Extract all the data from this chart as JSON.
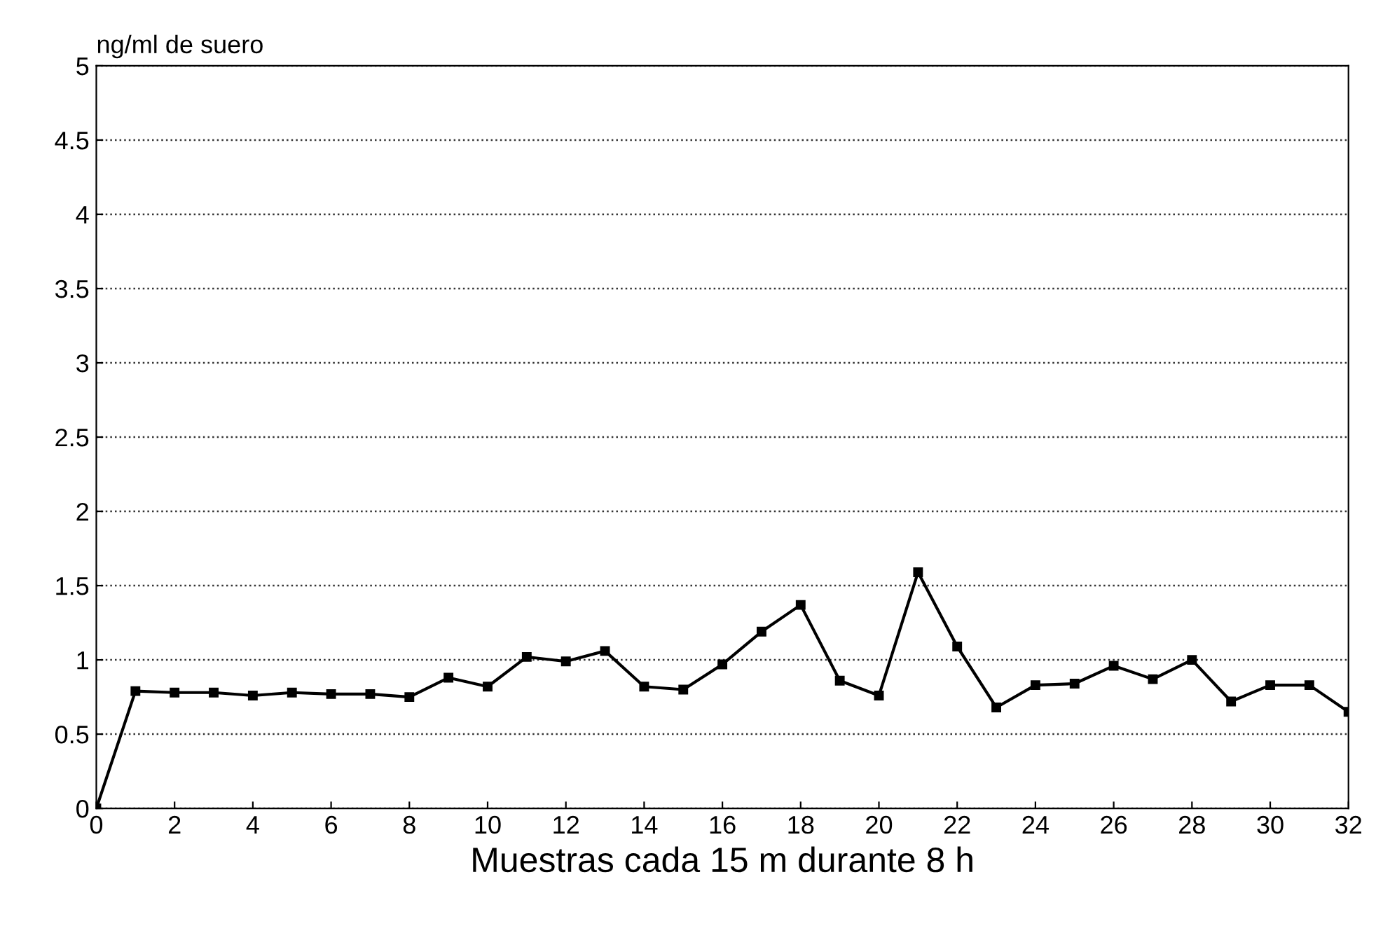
{
  "chart_data": {
    "type": "line",
    "ylabel": "ng/ml de suero",
    "xlabel": "Muestras cada 15 m durante 8 h",
    "x": [
      0,
      1,
      2,
      3,
      4,
      5,
      6,
      7,
      8,
      9,
      10,
      11,
      12,
      13,
      14,
      15,
      16,
      17,
      18,
      19,
      20,
      21,
      22,
      23,
      24,
      25,
      26,
      27,
      28,
      29,
      30,
      31,
      32
    ],
    "series": [
      {
        "color": "#000000",
        "values": [
          0,
          0.79,
          0.78,
          0.78,
          0.76,
          0.78,
          0.77,
          0.77,
          0.75,
          0.88,
          0.82,
          1.02,
          0.99,
          1.06,
          0.82,
          0.8,
          0.97,
          1.19,
          1.37,
          0.86,
          0.76,
          1.59,
          1.09,
          0.68,
          0.83,
          0.84,
          0.96,
          0.87,
          1.0,
          0.72,
          0.83,
          0.83,
          0.65
        ]
      }
    ],
    "xlim": [
      0,
      32
    ],
    "xticks": [
      0,
      2,
      4,
      6,
      8,
      10,
      12,
      14,
      16,
      18,
      20,
      22,
      24,
      26,
      28,
      30,
      32
    ],
    "ylim": [
      0,
      5
    ],
    "yticks": [
      0,
      0.5,
      1,
      1.5,
      2,
      2.5,
      3,
      3.5,
      4,
      4.5,
      5
    ],
    "grid": "y",
    "marker": "square",
    "line_style": "solid",
    "legend": false
  }
}
